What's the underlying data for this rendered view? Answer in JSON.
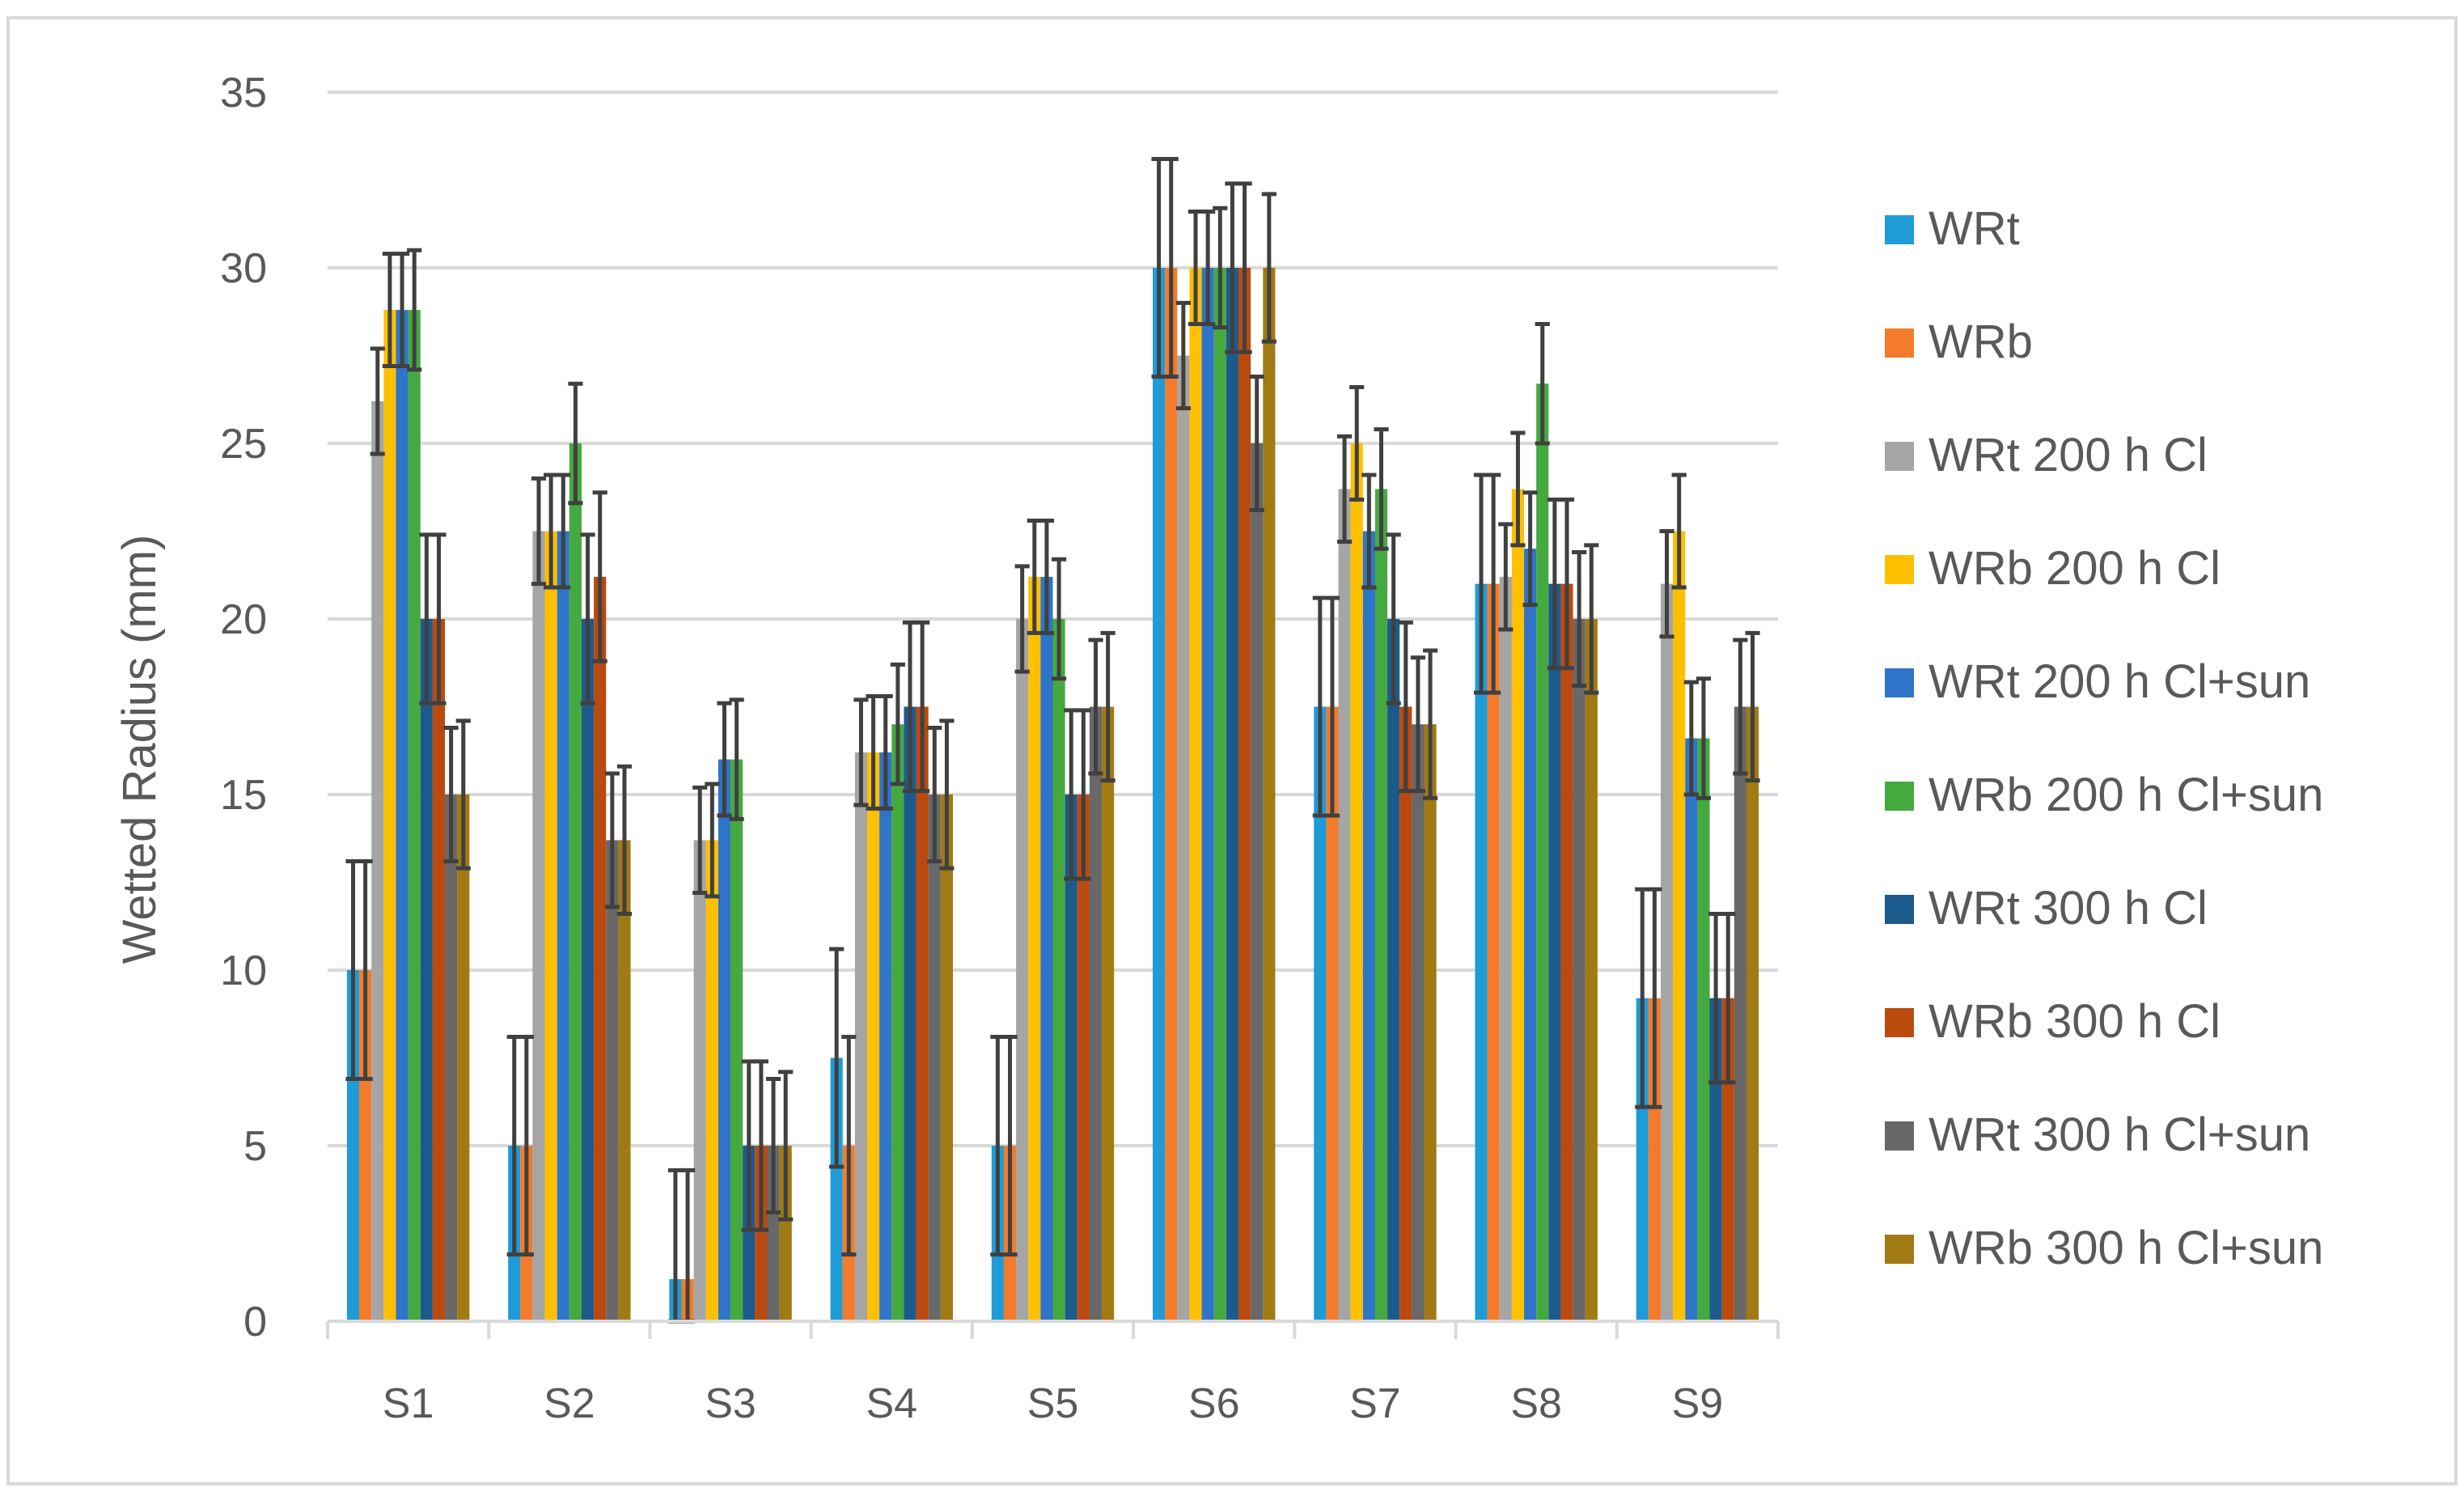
{
  "chart_data": {
    "type": "bar",
    "title": "",
    "xlabel": "",
    "ylabel": "Wetted Radius (mm)",
    "ylim": [
      0,
      35
    ],
    "yticks": [
      0,
      5,
      10,
      15,
      20,
      25,
      30,
      35
    ],
    "grid": true,
    "legend_position": "right",
    "categories": [
      "S1",
      "S2",
      "S3",
      "S4",
      "S5",
      "S6",
      "S7",
      "S8",
      "S9"
    ],
    "series": [
      {
        "name": "WRt",
        "color": "#1f9bd7",
        "values": [
          10,
          5,
          1.2,
          7.5,
          5,
          30,
          17.5,
          21,
          9.2
        ],
        "errors": [
          3.1,
          3.1,
          3.1,
          3.1,
          3.1,
          3.1,
          3.1,
          3.1,
          3.1
        ]
      },
      {
        "name": "WRb",
        "color": "#f37b2b",
        "values": [
          10,
          5,
          1.2,
          5,
          5,
          30,
          17.5,
          21,
          9.2
        ],
        "errors": [
          3.1,
          3.1,
          3.1,
          3.1,
          3.1,
          3.1,
          3.1,
          3.1,
          3.1
        ]
      },
      {
        "name": "WRt 200 h Cl",
        "color": "#a5a5a5",
        "values": [
          26.2,
          22.5,
          13.7,
          16.2,
          20,
          27.5,
          23.7,
          21.2,
          21
        ],
        "errors": [
          1.5,
          1.5,
          1.5,
          1.5,
          1.5,
          1.5,
          1.5,
          1.5,
          1.5
        ]
      },
      {
        "name": "WRb 200 h Cl",
        "color": "#ffc000",
        "values": [
          28.8,
          22.5,
          13.7,
          16.2,
          21.2,
          30,
          25,
          23.7,
          22.5
        ],
        "errors": [
          1.6,
          1.6,
          1.6,
          1.6,
          1.6,
          1.6,
          1.6,
          1.6,
          1.6
        ]
      },
      {
        "name": "WRt 200 h Cl+sun",
        "color": "#2f74c8",
        "values": [
          28.8,
          22.5,
          16,
          16.2,
          21.2,
          30,
          22.5,
          22,
          16.6
        ],
        "errors": [
          1.6,
          1.6,
          1.6,
          1.6,
          1.6,
          1.6,
          1.6,
          1.6,
          1.6
        ]
      },
      {
        "name": "WRb 200 h Cl+sun",
        "color": "#44aa3f",
        "values": [
          28.8,
          25,
          16,
          17,
          20,
          30,
          23.7,
          26.7,
          16.6
        ],
        "errors": [
          1.7,
          1.7,
          1.7,
          1.7,
          1.7,
          1.7,
          1.7,
          1.7,
          1.7
        ]
      },
      {
        "name": "WRt 300 h Cl",
        "color": "#1d5a8c",
        "values": [
          20,
          20,
          5,
          17.5,
          15,
          30,
          20,
          21,
          9.2
        ],
        "errors": [
          2.4,
          2.4,
          2.4,
          2.4,
          2.4,
          2.4,
          2.4,
          2.4,
          2.4
        ]
      },
      {
        "name": "WRb 300 h Cl",
        "color": "#bb4a0f",
        "values": [
          20,
          21.2,
          5,
          17.5,
          15,
          30,
          17.5,
          21,
          9.2
        ],
        "errors": [
          2.4,
          2.4,
          2.4,
          2.4,
          2.4,
          2.4,
          2.4,
          2.4,
          2.4
        ]
      },
      {
        "name": "WRt 300 h Cl+sun",
        "color": "#686868",
        "values": [
          15,
          13.7,
          5,
          15,
          17.5,
          25,
          17,
          20,
          17.5
        ],
        "errors": [
          1.9,
          1.9,
          1.9,
          1.9,
          1.9,
          1.9,
          1.9,
          1.9,
          1.9
        ]
      },
      {
        "name": "WRb 300 h Cl+sun",
        "color": "#a17a14",
        "values": [
          15,
          13.7,
          5,
          15,
          17.5,
          30,
          17,
          20,
          17.5
        ],
        "errors": [
          2.1,
          2.1,
          2.1,
          2.1,
          2.1,
          2.1,
          2.1,
          2.1,
          2.1
        ]
      }
    ]
  }
}
